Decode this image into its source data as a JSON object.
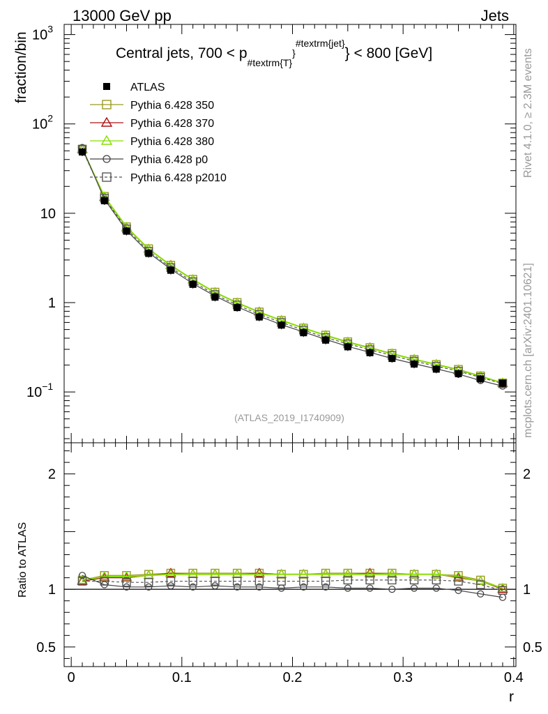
{
  "header": {
    "left": "13000 GeV pp",
    "right": "Jets"
  },
  "side_labels": {
    "rivet": "Rivet 4.1.0, ≥ 2.3M events",
    "mcplots": "mcplots.cern.ch [arXiv:2401.10621]"
  },
  "watermark": "(ATLAS_2019_I1740909)",
  "chart_data": {
    "type": "line",
    "title": "Central jets, 700 < p",
    "title_sub": "#textrm{T}",
    "title_sup": "#textrm{jet}",
    "title_tail": "} < 800 [GeV]",
    "xlabel": "r",
    "ylabel": "fraction/bin",
    "ratio_ylabel": "Ratio to ATLAS",
    "xlim": [
      -0.0064,
      0.402
    ],
    "ylim_log": [
      0.027,
      1300
    ],
    "ratio_ylim": [
      0.33,
      2.27
    ],
    "x_ticks": [
      "0",
      "0.1",
      "0.2",
      "0.3",
      "0.4"
    ],
    "y_ticks_main": [
      {
        "base": "10",
        "exp": "3",
        "value": 1000
      },
      {
        "base": "10",
        "exp": "2",
        "value": 100
      },
      {
        "base": "10",
        "exp": "",
        "value": 10
      },
      {
        "base": "1",
        "exp": "",
        "value": 1
      },
      {
        "base": "10",
        "exp": "−1",
        "value": 0.1
      }
    ],
    "y_ticks_ratio": [
      {
        "label": "2",
        "value": 2
      },
      {
        "label": "1",
        "value": 1
      },
      {
        "label": "0.5",
        "value": 0.5
      }
    ],
    "x": [
      0.01,
      0.03,
      0.05,
      0.07,
      0.09,
      0.11,
      0.13,
      0.15,
      0.17,
      0.19,
      0.21,
      0.23,
      0.25,
      0.27,
      0.29,
      0.31,
      0.33,
      0.35,
      0.37,
      0.39
    ],
    "data": {
      "name": "ATLAS",
      "values": [
        48.5,
        13.8,
        6.3,
        3.55,
        2.3,
        1.6,
        1.15,
        0.88,
        0.69,
        0.56,
        0.46,
        0.38,
        0.32,
        0.275,
        0.237,
        0.205,
        0.18,
        0.16,
        0.14,
        0.125
      ]
    },
    "series": [
      {
        "name": "Pythia 6.428 350",
        "color": "#999922",
        "marker": "square",
        "dash": "",
        "ratio": [
          1.08,
          1.12,
          1.12,
          1.13,
          1.14,
          1.14,
          1.14,
          1.14,
          1.14,
          1.13,
          1.13,
          1.14,
          1.14,
          1.14,
          1.14,
          1.13,
          1.13,
          1.12,
          1.08,
          1.01
        ]
      },
      {
        "name": "Pythia 6.428 370",
        "color": "#aa1111",
        "marker": "triangle",
        "dash": "",
        "ratio": [
          1.07,
          1.1,
          1.1,
          1.12,
          1.14,
          1.13,
          1.13,
          1.13,
          1.14,
          1.13,
          1.13,
          1.13,
          1.13,
          1.14,
          1.13,
          1.13,
          1.13,
          1.1,
          1.07,
          1.0
        ]
      },
      {
        "name": "Pythia 6.428 380",
        "color": "#88dd00",
        "marker": "triangle",
        "dash": "",
        "ratio": [
          1.08,
          1.11,
          1.11,
          1.12,
          1.13,
          1.13,
          1.13,
          1.13,
          1.13,
          1.13,
          1.13,
          1.13,
          1.13,
          1.13,
          1.13,
          1.13,
          1.13,
          1.11,
          1.07,
          1.01
        ]
      },
      {
        "name": "Pythia 6.428 p0",
        "color": "#444444",
        "marker": "circle",
        "dash": "",
        "ratio": [
          1.12,
          1.04,
          1.02,
          1.02,
          1.03,
          1.02,
          1.03,
          1.02,
          1.02,
          1.01,
          1.02,
          1.02,
          1.01,
          1.01,
          1.0,
          1.01,
          1.01,
          0.99,
          0.96,
          0.93
        ]
      },
      {
        "name": "Pythia 6.428 p2010",
        "color": "#555555",
        "marker": "square",
        "dash": "4,3",
        "ratio": [
          1.07,
          1.07,
          1.06,
          1.06,
          1.07,
          1.07,
          1.07,
          1.07,
          1.07,
          1.07,
          1.07,
          1.07,
          1.08,
          1.08,
          1.08,
          1.08,
          1.08,
          1.07,
          1.04,
          0.99
        ]
      }
    ]
  }
}
